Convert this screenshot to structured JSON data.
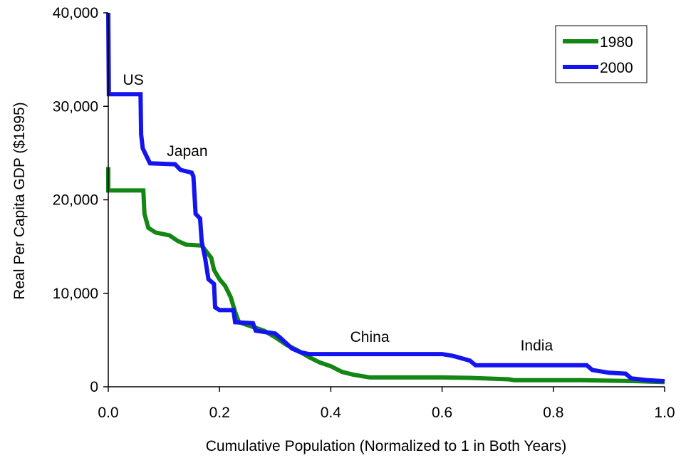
{
  "chart_data": {
    "type": "line",
    "title": "",
    "xlabel": "Cumulative Population (Normalized to 1 in Both Years)",
    "ylabel": "Real Per Capita GDP ($1995)",
    "xlim": [
      0,
      1
    ],
    "ylim": [
      0,
      40000
    ],
    "x_ticks": [
      "0.0",
      "0.2",
      "0.4",
      "0.6",
      "0.8",
      "1.0"
    ],
    "y_ticks": [
      "0",
      "10,000",
      "20,000",
      "30,000",
      "40,000"
    ],
    "grid": false,
    "legend_position": "top-right",
    "series": [
      {
        "name": "1980",
        "color": "#138613",
        "points": [
          [
            0.0,
            23500
          ],
          [
            0.0,
            21000
          ],
          [
            0.063,
            21000
          ],
          [
            0.065,
            18500
          ],
          [
            0.072,
            17000
          ],
          [
            0.085,
            16500
          ],
          [
            0.11,
            16200
          ],
          [
            0.125,
            15600
          ],
          [
            0.14,
            15200
          ],
          [
            0.168,
            15100
          ],
          [
            0.185,
            13800
          ],
          [
            0.19,
            12500
          ],
          [
            0.2,
            11500
          ],
          [
            0.21,
            10800
          ],
          [
            0.22,
            9600
          ],
          [
            0.228,
            8000
          ],
          [
            0.235,
            6900
          ],
          [
            0.26,
            6400
          ],
          [
            0.28,
            6000
          ],
          [
            0.3,
            5300
          ],
          [
            0.32,
            4500
          ],
          [
            0.34,
            3900
          ],
          [
            0.36,
            3200
          ],
          [
            0.38,
            2600
          ],
          [
            0.4,
            2200
          ],
          [
            0.42,
            1600
          ],
          [
            0.44,
            1300
          ],
          [
            0.46,
            1100
          ],
          [
            0.47,
            1000
          ],
          [
            0.6,
            1000
          ],
          [
            0.65,
            950
          ],
          [
            0.72,
            800
          ],
          [
            0.73,
            700
          ],
          [
            0.85,
            700
          ],
          [
            0.95,
            600
          ],
          [
            1.0,
            500
          ]
        ]
      },
      {
        "name": "2000",
        "color": "#1414f0",
        "points": [
          [
            0.0,
            40000
          ],
          [
            0.001,
            31300
          ],
          [
            0.058,
            31300
          ],
          [
            0.059,
            27000
          ],
          [
            0.062,
            25500
          ],
          [
            0.07,
            24500
          ],
          [
            0.075,
            23900
          ],
          [
            0.12,
            23800
          ],
          [
            0.13,
            23200
          ],
          [
            0.15,
            22900
          ],
          [
            0.153,
            22500
          ],
          [
            0.157,
            18500
          ],
          [
            0.165,
            18000
          ],
          [
            0.168,
            15500
          ],
          [
            0.174,
            13800
          ],
          [
            0.18,
            11500
          ],
          [
            0.19,
            11000
          ],
          [
            0.192,
            8500
          ],
          [
            0.2,
            8200
          ],
          [
            0.225,
            8200
          ],
          [
            0.228,
            6900
          ],
          [
            0.26,
            6800
          ],
          [
            0.265,
            6000
          ],
          [
            0.3,
            5700
          ],
          [
            0.31,
            5200
          ],
          [
            0.33,
            4100
          ],
          [
            0.345,
            3700
          ],
          [
            0.36,
            3500
          ],
          [
            0.6,
            3500
          ],
          [
            0.62,
            3300
          ],
          [
            0.65,
            2800
          ],
          [
            0.66,
            2300
          ],
          [
            0.86,
            2300
          ],
          [
            0.87,
            1800
          ],
          [
            0.9,
            1500
          ],
          [
            0.93,
            1400
          ],
          [
            0.94,
            900
          ],
          [
            0.97,
            700
          ],
          [
            1.0,
            600
          ]
        ]
      }
    ],
    "annotations": [
      {
        "text": "US",
        "x": 0.045,
        "y": 32300
      },
      {
        "text": "Japan",
        "x": 0.142,
        "y": 24700
      },
      {
        "text": "China",
        "x": 0.47,
        "y": 4800
      },
      {
        "text": "India",
        "x": 0.77,
        "y": 3900
      }
    ]
  }
}
